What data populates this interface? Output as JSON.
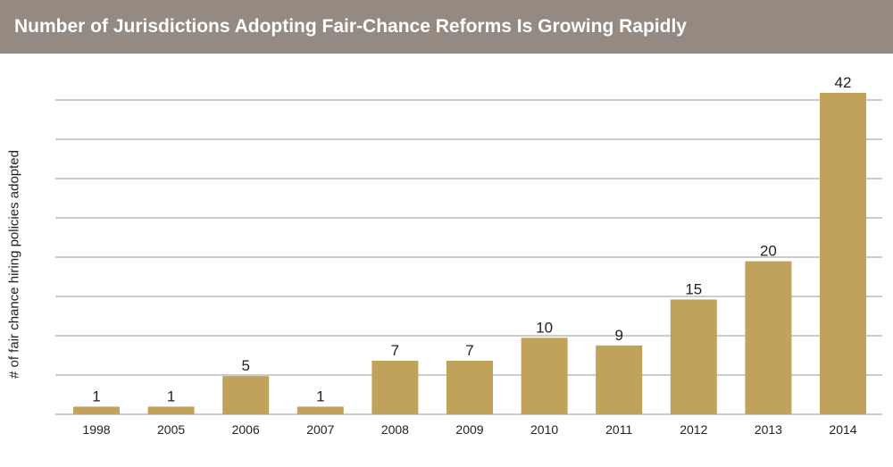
{
  "chart_data": {
    "type": "bar",
    "title": "Number of Jurisdictions Adopting Fair-Chance Reforms Is Growing Rapidly",
    "xlabel": "",
    "ylabel": "# of fair chance hiring policies adopted",
    "categories": [
      "1998",
      "2005",
      "2006",
      "2007",
      "2008",
      "2009",
      "2010",
      "2011",
      "2012",
      "2013",
      "2014"
    ],
    "values": [
      1,
      1,
      5,
      1,
      7,
      7,
      10,
      9,
      15,
      20,
      42
    ],
    "ylim": [
      0,
      42
    ],
    "grid": true,
    "show_y_tick_labels": false,
    "data_labels": true,
    "colors": {
      "bar": "#c0a25a",
      "title_bar": "#958a81",
      "title_text": "#ffffff",
      "grid": "#9a9a9a",
      "text": "#222222"
    }
  }
}
